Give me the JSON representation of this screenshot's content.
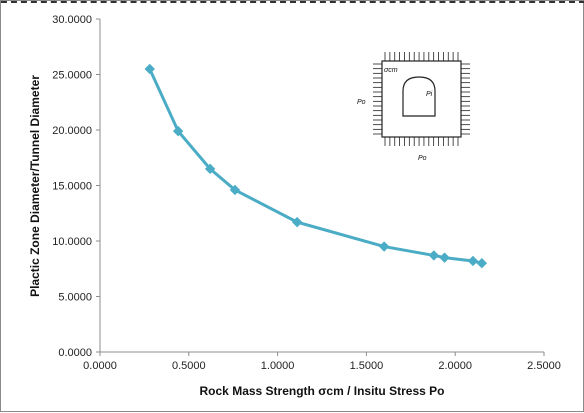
{
  "chart_data": {
    "type": "line",
    "xlabel": "Rock Mass Strength σcm / Insitu Stress Po",
    "ylabel": "Plactic Zone Diameter/Tunnel Diameter",
    "xlim": [
      0,
      2.5
    ],
    "ylim": [
      0,
      30
    ],
    "x_ticks": [
      "0.0000",
      "0.5000",
      "1.0000",
      "1.5000",
      "2.0000",
      "2.5000"
    ],
    "y_ticks": [
      "0.0000",
      "5.0000",
      "10.0000",
      "15.0000",
      "20.0000",
      "25.0000",
      "30.0000"
    ],
    "grid": false,
    "legend": "none",
    "series": [
      {
        "color": "#4bacc6",
        "marker": "diamond",
        "x": [
          0.28,
          0.44,
          0.62,
          0.76,
          1.11,
          1.6,
          1.88,
          1.94,
          2.1,
          2.15
        ],
        "y": [
          25.5,
          19.9,
          16.5,
          14.6,
          11.7,
          9.5,
          8.7,
          8.5,
          8.2,
          8.0
        ]
      }
    ]
  },
  "inset": {
    "description_labels": {
      "sigma": "σcm",
      "pi": "Pi",
      "po_left": "Po",
      "po_bottom": "Po"
    }
  }
}
